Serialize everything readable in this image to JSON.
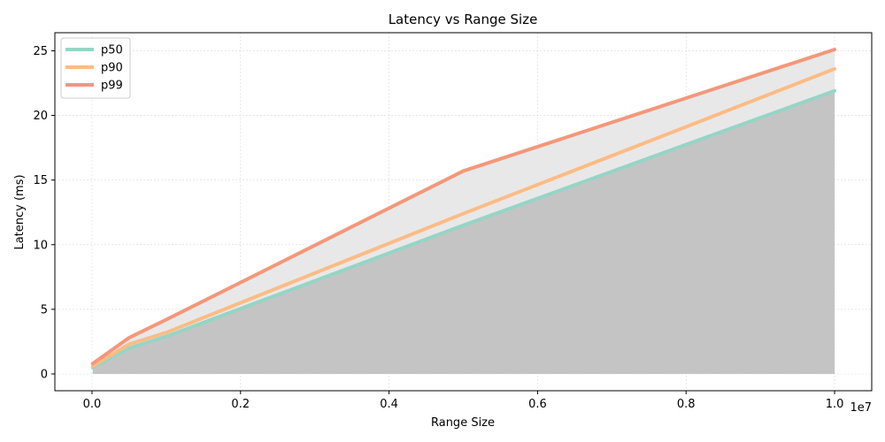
{
  "chart_data": {
    "type": "line",
    "title": "Latency vs Range Size",
    "xlabel": "Range Size",
    "ylabel": "Latency (ms)",
    "x_offset_label": "1e7",
    "x": [
      10000,
      500000,
      1000000,
      5000000,
      10000000
    ],
    "xlim": [
      -500000,
      10500000
    ],
    "ylim": [
      -1.3,
      26.4
    ],
    "x_ticks": [
      0,
      2000000,
      4000000,
      6000000,
      8000000,
      10000000
    ],
    "x_tick_labels": [
      "0.0",
      "0.2",
      "0.4",
      "0.6",
      "0.8",
      "1.0"
    ],
    "y_ticks": [
      0,
      5,
      10,
      15,
      20,
      25
    ],
    "y_tick_labels": [
      "0",
      "5",
      "10",
      "15",
      "20",
      "25"
    ],
    "grid": true,
    "legend_position": "top-left",
    "series": [
      {
        "name": "p50",
        "values": [
          0.5,
          2.0,
          2.9,
          11.5,
          21.9
        ],
        "color": "#95d5c6"
      },
      {
        "name": "p90",
        "values": [
          0.6,
          2.3,
          3.2,
          12.4,
          23.6
        ],
        "color": "#fdbb84"
      },
      {
        "name": "p99",
        "values": [
          0.8,
          2.8,
          4.2,
          15.7,
          25.1
        ],
        "color": "#f4977a"
      }
    ],
    "fill_colors": {
      "under_p50": "#c4c4c4",
      "p50_to_p99": "#e8e8e8"
    }
  }
}
